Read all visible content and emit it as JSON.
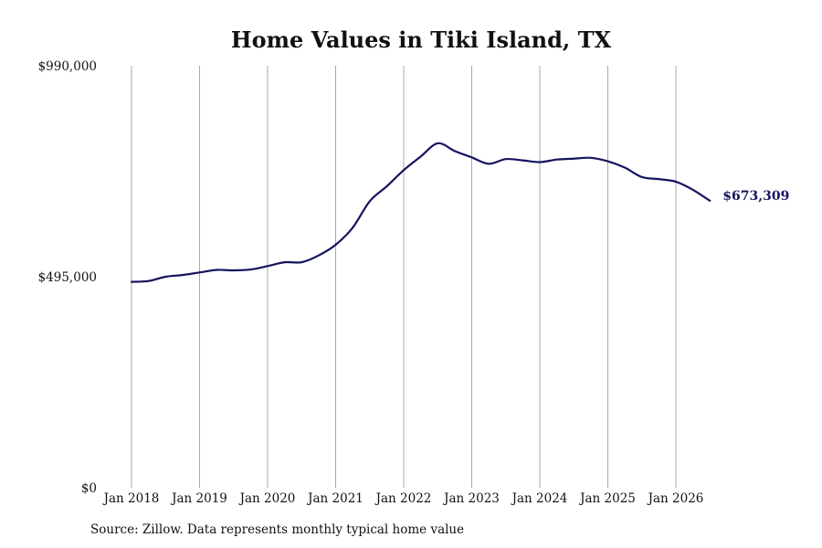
{
  "chart_data": {
    "type": "line",
    "title": "Home Values in Tiki Island, TX",
    "xlabel": "",
    "ylabel": "",
    "ylim": [
      0,
      990000
    ],
    "xlim": [
      "2018-01",
      "2026-07"
    ],
    "y_ticks": [
      {
        "value": 0,
        "label": "$0"
      },
      {
        "value": 495000,
        "label": "$495,000"
      },
      {
        "value": 990000,
        "label": "$990,000"
      }
    ],
    "x_ticks": [
      {
        "value": "2018-01",
        "label": "Jan 2018"
      },
      {
        "value": "2019-01",
        "label": "Jan 2019"
      },
      {
        "value": "2020-01",
        "label": "Jan 2020"
      },
      {
        "value": "2021-01",
        "label": "Jan 2021"
      },
      {
        "value": "2022-01",
        "label": "Jan 2022"
      },
      {
        "value": "2023-01",
        "label": "Jan 2023"
      },
      {
        "value": "2024-01",
        "label": "Jan 2024"
      },
      {
        "value": "2025-01",
        "label": "Jan 2025"
      },
      {
        "value": "2026-01",
        "label": "Jan 2026"
      }
    ],
    "grid": {
      "vertical": true,
      "horizontal": false
    },
    "line_color": "#15145e",
    "end_label": "$673,309",
    "series": [
      {
        "points": [
          {
            "x": "2018-01",
            "y": 483000
          },
          {
            "x": "2018-04",
            "y": 485000
          },
          {
            "x": "2018-07",
            "y": 495000
          },
          {
            "x": "2018-10",
            "y": 499000
          },
          {
            "x": "2019-01",
            "y": 505000
          },
          {
            "x": "2019-04",
            "y": 511000
          },
          {
            "x": "2019-07",
            "y": 510000
          },
          {
            "x": "2019-10",
            "y": 512000
          },
          {
            "x": "2020-01",
            "y": 520000
          },
          {
            "x": "2020-04",
            "y": 529000
          },
          {
            "x": "2020-07",
            "y": 529000
          },
          {
            "x": "2020-10",
            "y": 545000
          },
          {
            "x": "2021-01",
            "y": 570000
          },
          {
            "x": "2021-04",
            "y": 610000
          },
          {
            "x": "2021-07",
            "y": 672000
          },
          {
            "x": "2021-10",
            "y": 707000
          },
          {
            "x": "2022-01",
            "y": 745000
          },
          {
            "x": "2022-04",
            "y": 777000
          },
          {
            "x": "2022-07",
            "y": 808000
          },
          {
            "x": "2022-10",
            "y": 790000
          },
          {
            "x": "2023-01",
            "y": 775000
          },
          {
            "x": "2023-04",
            "y": 760000
          },
          {
            "x": "2023-07",
            "y": 771000
          },
          {
            "x": "2023-10",
            "y": 768000
          },
          {
            "x": "2024-01",
            "y": 764000
          },
          {
            "x": "2024-04",
            "y": 770000
          },
          {
            "x": "2024-07",
            "y": 772000
          },
          {
            "x": "2024-10",
            "y": 774000
          },
          {
            "x": "2025-01",
            "y": 766000
          },
          {
            "x": "2025-04",
            "y": 751000
          },
          {
            "x": "2025-07",
            "y": 729000
          },
          {
            "x": "2025-10",
            "y": 724000
          },
          {
            "x": "2026-01",
            "y": 718000
          },
          {
            "x": "2026-04",
            "y": 699000
          },
          {
            "x": "2026-07",
            "y": 673309
          }
        ]
      }
    ]
  },
  "source_note": "Source: Zillow. Data represents monthly typical home value"
}
